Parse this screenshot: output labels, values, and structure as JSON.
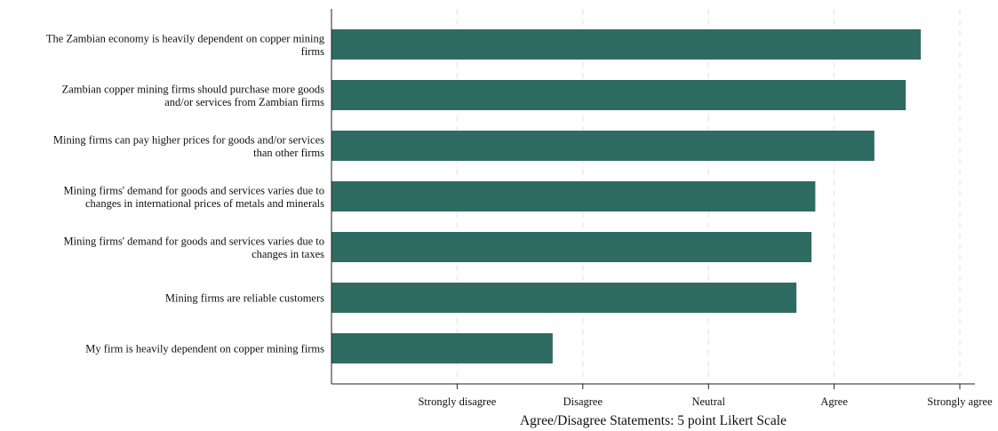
{
  "chart_data": {
    "type": "bar",
    "orientation": "horizontal",
    "categories": [
      [
        "The Zambian economy is heavily dependent on copper mining",
        "firms"
      ],
      [
        "Zambian copper mining firms should purchase more goods",
        "and/or services from Zambian firms"
      ],
      [
        "Mining firms can pay higher prices for goods and/or services",
        "than other firms"
      ],
      [
        "Mining firms' demand for goods and services varies due to",
        "changes in international prices of metals and minerals"
      ],
      [
        "Mining firms' demand for goods and services varies due to",
        "changes in taxes"
      ],
      [
        "Mining firms are reliable customers"
      ],
      [
        "My firm is heavily dependent on copper mining firms"
      ]
    ],
    "values": [
      4.69,
      4.57,
      4.32,
      3.85,
      3.82,
      3.7,
      1.76
    ],
    "xlim": [
      0,
      5.12
    ],
    "xticks": [
      {
        "value": 1,
        "label": "Strongly disagree"
      },
      {
        "value": 2,
        "label": "Disagree"
      },
      {
        "value": 3,
        "label": "Neutral"
      },
      {
        "value": 4,
        "label": "Agree"
      },
      {
        "value": 5,
        "label": "Strongly agree"
      }
    ],
    "xlabel": "Agree/Disagree Statements: 5 point Likert Scale",
    "ylabel": "",
    "title": "",
    "grid": true,
    "bar_color": "#2e6b63"
  }
}
